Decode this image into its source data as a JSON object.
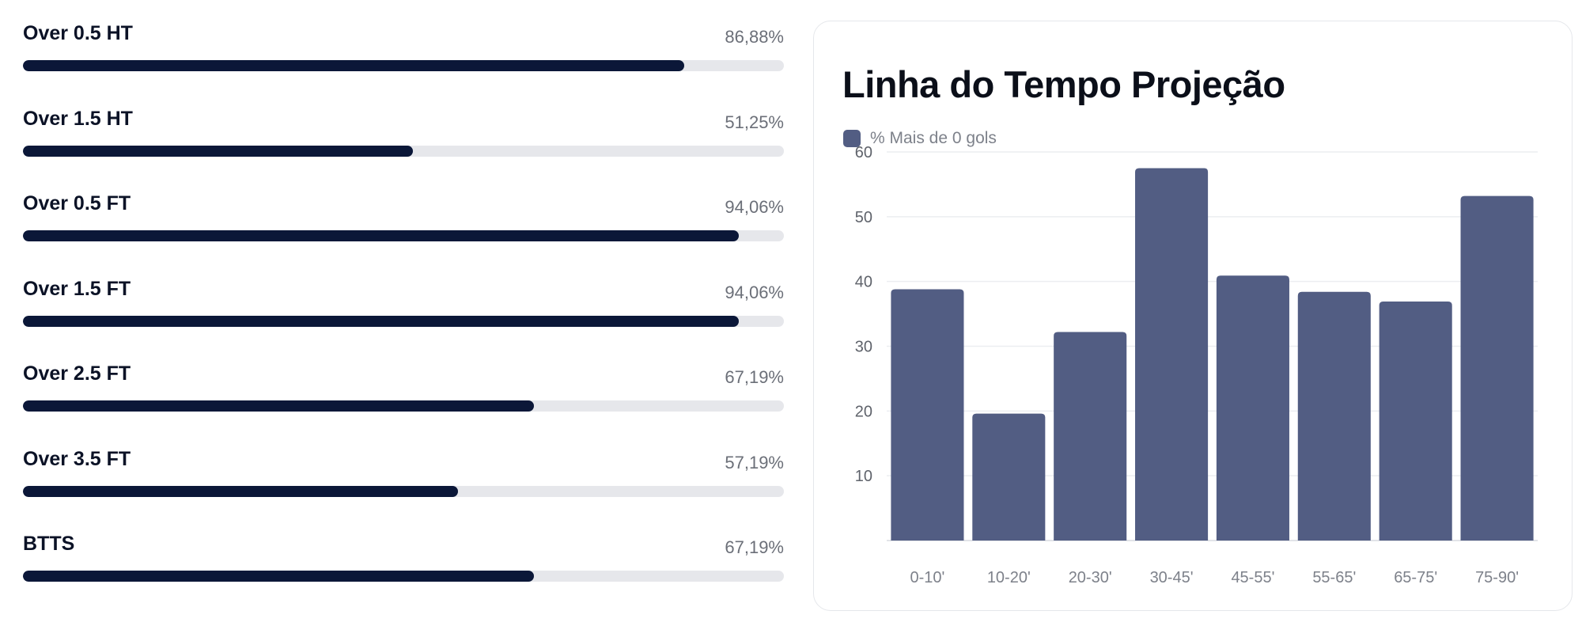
{
  "stats": [
    {
      "label": "Over 0.5 HT",
      "value_text": "86,88%",
      "value": 86.88
    },
    {
      "label": "Over 1.5 HT",
      "value_text": "51,25%",
      "value": 51.25
    },
    {
      "label": "Over 0.5 FT",
      "value_text": "94,06%",
      "value": 94.06
    },
    {
      "label": "Over 1.5 FT",
      "value_text": "94,06%",
      "value": 94.06
    },
    {
      "label": "Over 2.5 FT",
      "value_text": "67,19%",
      "value": 67.19
    },
    {
      "label": "Over 3.5 FT",
      "value_text": "57,19%",
      "value": 57.19
    },
    {
      "label": "BTTS",
      "value_text": "67,19%",
      "value": 67.19
    }
  ],
  "chart_data": {
    "type": "bar",
    "title": "Linha do Tempo Projeção",
    "categories": [
      "0-10'",
      "10-20'",
      "20-30'",
      "30-45'",
      "45-55'",
      "55-65'",
      "65-75'",
      "75-90'"
    ],
    "series": [
      {
        "name": "% Mais de 0 gols",
        "values": [
          38.8,
          19.6,
          32.2,
          57.5,
          40.9,
          38.4,
          36.9,
          53.2
        ],
        "color": "#525d83"
      }
    ],
    "yticks": [
      10,
      20,
      30,
      40,
      50,
      60
    ],
    "ylim": [
      0,
      60
    ],
    "grid": true,
    "legend": "top-left"
  }
}
